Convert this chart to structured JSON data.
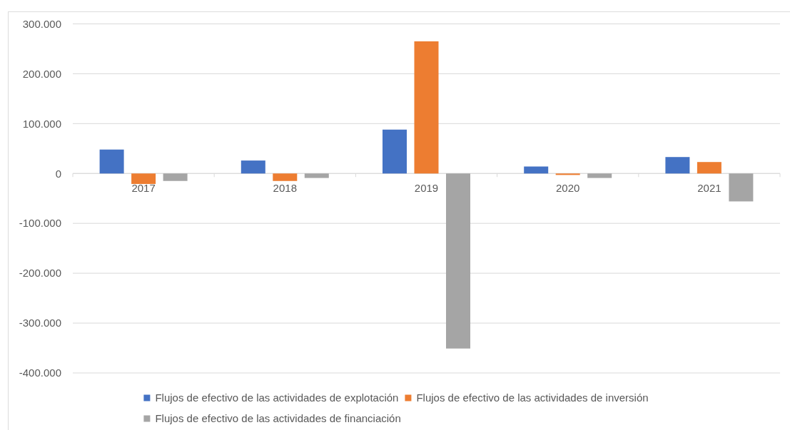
{
  "chart_data": {
    "type": "bar",
    "categories": [
      "2017",
      "2018",
      "2019",
      "2020",
      "2021"
    ],
    "series": [
      {
        "name": "Flujos de efectivo de las actividades de explotación",
        "color": "#4472c4",
        "values": [
          48000,
          26000,
          88000,
          14000,
          33000
        ]
      },
      {
        "name": "Flujos de efectivo de las actividades de inversión",
        "color": "#ed7d31",
        "values": [
          -21000,
          -15000,
          265000,
          -3000,
          23000
        ]
      },
      {
        "name": "Flujos de efectivo de las actividades de financiación",
        "color": "#a5a5a5",
        "values": [
          -15000,
          -9000,
          -351000,
          -9000,
          -56000
        ]
      }
    ],
    "ylim": [
      -400000,
      300000
    ],
    "yticks": [
      {
        "value": -400000,
        "label": "-400.000"
      },
      {
        "value": -300000,
        "label": "-300.000"
      },
      {
        "value": -200000,
        "label": "-200.000"
      },
      {
        "value": -100000,
        "label": "-100.000"
      },
      0,
      {
        "value": 100000,
        "label": "100.000"
      },
      {
        "value": 200000,
        "label": "200.000"
      },
      {
        "value": 300000,
        "label": "300.000"
      }
    ],
    "grid": "y",
    "legend": "bottom"
  }
}
